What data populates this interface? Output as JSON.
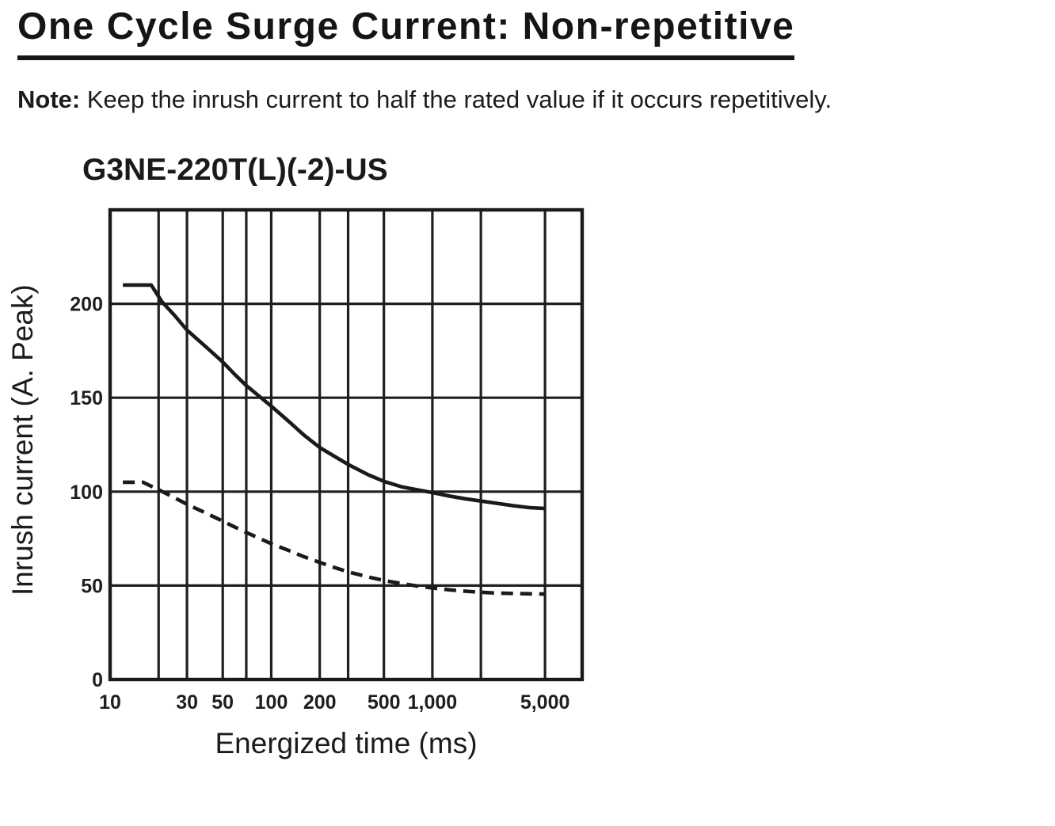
{
  "header": {
    "title": "One Cycle Surge Current: Non-repetitive"
  },
  "note": {
    "label": "Note:",
    "text": " Keep the inrush current to half the rated value if it occurs repetitively."
  },
  "colors": {
    "ink": "#1a1a1a",
    "paper": "#ffffff"
  },
  "chart_data": {
    "type": "line",
    "title": "G3NE-220T(L)(-2)-US",
    "xlabel": "Energized time (ms)",
    "ylabel": "Inrush current (A. Peak)",
    "x_scale": "log",
    "y_scale": "linear",
    "xlim": [
      10,
      8500
    ],
    "ylim": [
      0,
      250
    ],
    "grid": true,
    "legend": "none",
    "x_gridlines": [
      20,
      30,
      50,
      70,
      100,
      200,
      300,
      500,
      1000,
      2000,
      5000
    ],
    "y_gridlines": [
      50,
      100,
      150,
      200
    ],
    "x_ticks": [
      {
        "value": 10,
        "label": "10"
      },
      {
        "value": 30,
        "label": "30"
      },
      {
        "value": 50,
        "label": "50"
      },
      {
        "value": 100,
        "label": "100"
      },
      {
        "value": 200,
        "label": "200"
      },
      {
        "value": 500,
        "label": "500"
      },
      {
        "value": 1000,
        "label": "1,000"
      },
      {
        "value": 5000,
        "label": "5,000"
      }
    ],
    "y_ticks": [
      {
        "value": 0,
        "label": "0"
      },
      {
        "value": 50,
        "label": "50"
      },
      {
        "value": 100,
        "label": "100"
      },
      {
        "value": 150,
        "label": "150"
      },
      {
        "value": 200,
        "label": "200"
      }
    ],
    "series": [
      {
        "name": "solid-curve",
        "line_style": "solid",
        "points": [
          [
            12,
            210
          ],
          [
            18,
            210
          ],
          [
            21,
            201
          ],
          [
            25,
            194
          ],
          [
            30,
            186
          ],
          [
            40,
            176.5
          ],
          [
            50,
            169
          ],
          [
            60,
            162
          ],
          [
            70,
            156.5
          ],
          [
            85,
            150.5
          ],
          [
            100,
            145.5
          ],
          [
            130,
            137
          ],
          [
            160,
            130
          ],
          [
            200,
            123.5
          ],
          [
            250,
            118.5
          ],
          [
            300,
            114.5
          ],
          [
            400,
            109
          ],
          [
            500,
            105.5
          ],
          [
            650,
            102.5
          ],
          [
            800,
            101
          ],
          [
            1000,
            99.5
          ],
          [
            1300,
            97.5
          ],
          [
            1600,
            96.2
          ],
          [
            2000,
            95
          ],
          [
            2500,
            93.8
          ],
          [
            3200,
            92.5
          ],
          [
            4000,
            91.5
          ],
          [
            5000,
            91
          ]
        ]
      },
      {
        "name": "dashed-curve",
        "line_style": "dashed",
        "points": [
          [
            12,
            105
          ],
          [
            16,
            105
          ],
          [
            20,
            101
          ],
          [
            25,
            96.8
          ],
          [
            30,
            93.3
          ],
          [
            40,
            88.3
          ],
          [
            50,
            84.3
          ],
          [
            60,
            81
          ],
          [
            70,
            78.3
          ],
          [
            85,
            75
          ],
          [
            100,
            72.3
          ],
          [
            130,
            68.5
          ],
          [
            160,
            65.3
          ],
          [
            200,
            62.3
          ],
          [
            250,
            59.5
          ],
          [
            300,
            57.3
          ],
          [
            400,
            54.6
          ],
          [
            500,
            52.7
          ],
          [
            650,
            51
          ],
          [
            800,
            49.8
          ],
          [
            1000,
            48.7
          ],
          [
            1300,
            47.7
          ],
          [
            1600,
            47
          ],
          [
            2000,
            46.4
          ],
          [
            2500,
            46
          ],
          [
            3200,
            45.8
          ],
          [
            4000,
            45.6
          ],
          [
            5000,
            45.5
          ]
        ]
      }
    ]
  }
}
